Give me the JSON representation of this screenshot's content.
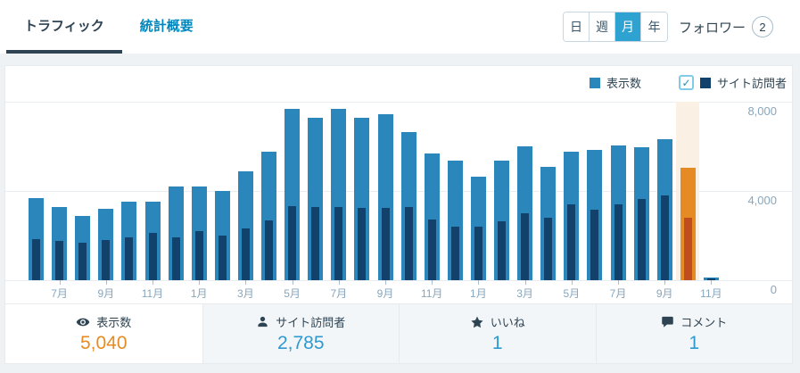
{
  "header": {
    "tabs": [
      {
        "label": "トラフィック",
        "active": true
      },
      {
        "label": "統計概要",
        "active": false
      }
    ],
    "period_buttons": [
      {
        "label": "日",
        "active": false
      },
      {
        "label": "週",
        "active": false
      },
      {
        "label": "月",
        "active": true
      },
      {
        "label": "年",
        "active": false
      }
    ],
    "followers_label": "フォロワー",
    "followers_count": "2"
  },
  "legend": {
    "views_label": "表示数",
    "visitors_label": "サイト訪問者",
    "visitors_checkbox_checked": true,
    "checkmark": "✓"
  },
  "chart_data": {
    "type": "bar",
    "series": [
      {
        "name": "表示数",
        "values": [
          3680,
          3290,
          2890,
          3210,
          3520,
          3520,
          4190,
          4190,
          4010,
          4890,
          5750,
          7680,
          7280,
          7690,
          7280,
          7430,
          6640,
          5690,
          5350,
          4640,
          5350,
          6010,
          5080,
          5760,
          5850,
          6050,
          5950,
          6330,
          5040,
          100
        ]
      },
      {
        "name": "サイト訪問者",
        "values": [
          1850,
          1750,
          1690,
          1810,
          1930,
          2120,
          1920,
          2190,
          2010,
          2320,
          2690,
          3320,
          3280,
          3280,
          3240,
          3240,
          3270,
          2730,
          2390,
          2410,
          2650,
          3000,
          2810,
          3410,
          3150,
          3410,
          3640,
          3810,
          2785,
          60
        ]
      }
    ],
    "x_tick_labels": [
      "7月",
      "9月",
      "11月",
      "1月",
      "3月",
      "5月",
      "7月",
      "9月",
      "11月",
      "1月",
      "3月",
      "5月",
      "7月",
      "9月",
      "11月"
    ],
    "first_tick_index": 1,
    "tick_step": 2,
    "highlight_index": 28,
    "ylim": [
      0,
      8000
    ],
    "ytick_labels": [
      "8,000",
      "4,000",
      "0"
    ],
    "grid": true,
    "legend_position": "top-right",
    "colors": {
      "views": "#2b87bb",
      "visitors": "#12426b",
      "views_highlight": "#e68b23",
      "visitors_highlight": "#c04d20",
      "highlight_bg": "#fbf0e4"
    }
  },
  "stats": [
    {
      "icon": "eye-icon",
      "label": "表示数",
      "value": "5,040",
      "color": "orange",
      "active": true
    },
    {
      "icon": "person-icon",
      "label": "サイト訪問者",
      "value": "2,785",
      "color": "blue",
      "active": false
    },
    {
      "icon": "star-icon",
      "label": "いいね",
      "value": "1",
      "color": "blue",
      "active": false
    },
    {
      "icon": "comment-icon",
      "label": "コメント",
      "value": "1",
      "color": "blue",
      "active": false
    }
  ]
}
